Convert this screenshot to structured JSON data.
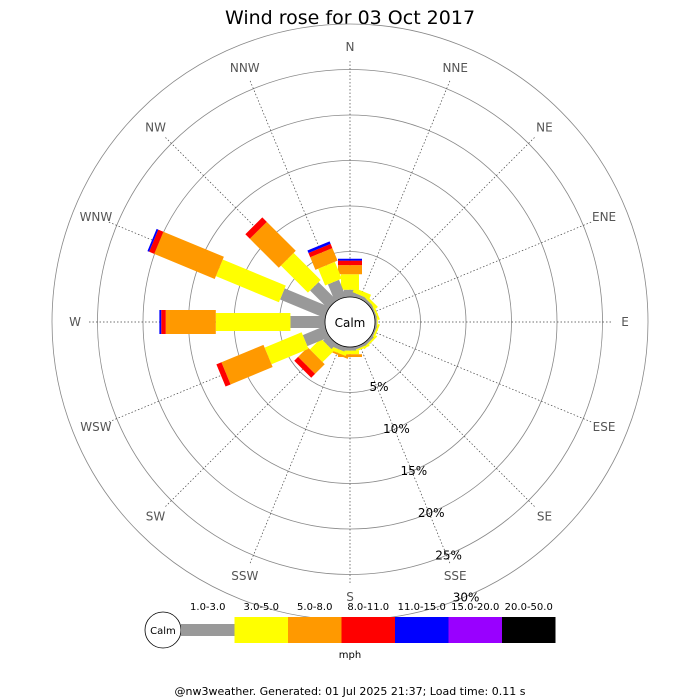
{
  "chart_data": {
    "type": "wind-rose",
    "title": "Wind rose for 03 Oct 2017",
    "directions": [
      "N",
      "NNE",
      "NE",
      "ENE",
      "E",
      "ESE",
      "SE",
      "SSE",
      "S",
      "SSW",
      "SW",
      "WSW",
      "W",
      "WNW",
      "NW",
      "NNW"
    ],
    "radial_ticks": [
      "5%",
      "10%",
      "15%",
      "20%",
      "25%",
      "30%"
    ],
    "radial_values": [
      5,
      10,
      15,
      20,
      25,
      30
    ],
    "calm_label": "Calm",
    "speed_bins": [
      {
        "label": "1.0-3.0",
        "color": "#999999"
      },
      {
        "label": "3.0-5.0",
        "color": "#ffff00"
      },
      {
        "label": "5.0-8.0",
        "color": "#ff9900"
      },
      {
        "label": "8.0-11.0",
        "color": "#ff0000"
      },
      {
        "label": "11.0-15.0",
        "color": "#0000ff"
      },
      {
        "label": "15.0-20.0",
        "color": "#9900ff"
      },
      {
        "label": "20.0-50.0",
        "color": "#000000"
      }
    ],
    "units": "mph",
    "series": [
      {
        "direction": "N",
        "cumulative": [
          0.8,
          2.5,
          3.5,
          4.0,
          4.2
        ]
      },
      {
        "direction": "NNE",
        "cumulative": [
          0.4,
          0.9
        ]
      },
      {
        "direction": "NE",
        "cumulative": [
          0.3,
          0.6
        ]
      },
      {
        "direction": "ENE",
        "cumulative": [
          0.2,
          0.4
        ]
      },
      {
        "direction": "E",
        "cumulative": [
          0.2,
          0.3
        ]
      },
      {
        "direction": "ESE",
        "cumulative": [
          0.2,
          0.4
        ]
      },
      {
        "direction": "SE",
        "cumulative": [
          0.3,
          0.5
        ]
      },
      {
        "direction": "SSE",
        "cumulative": [
          0.3,
          0.5
        ]
      },
      {
        "direction": "S",
        "cumulative": [
          0.4,
          0.8,
          1.1
        ]
      },
      {
        "direction": "SSW",
        "cumulative": [
          0.5,
          0.9,
          1.1
        ]
      },
      {
        "direction": "SW",
        "cumulative": [
          0.8,
          2.5,
          4.0,
          4.6
        ]
      },
      {
        "direction": "WSW",
        "cumulative": [
          2.6,
          7.0,
          12.0,
          12.6
        ]
      },
      {
        "direction": "W",
        "cumulative": [
          3.8,
          12.0,
          17.5,
          18.0,
          18.2
        ]
      },
      {
        "direction": "WNW",
        "cumulative": [
          5.3,
          12.8,
          20.0,
          20.6,
          20.8
        ]
      },
      {
        "direction": "NW",
        "cumulative": [
          2.8,
          7.0,
          11.5,
          12.2
        ]
      },
      {
        "direction": "NNW",
        "cumulative": [
          2.0,
          4.0,
          5.5,
          6.0,
          6.3
        ]
      }
    ],
    "grid": true
  },
  "footer": "@nw3weather. Generated: 01 Jul 2025 21:37; Load time: 0.11 s"
}
